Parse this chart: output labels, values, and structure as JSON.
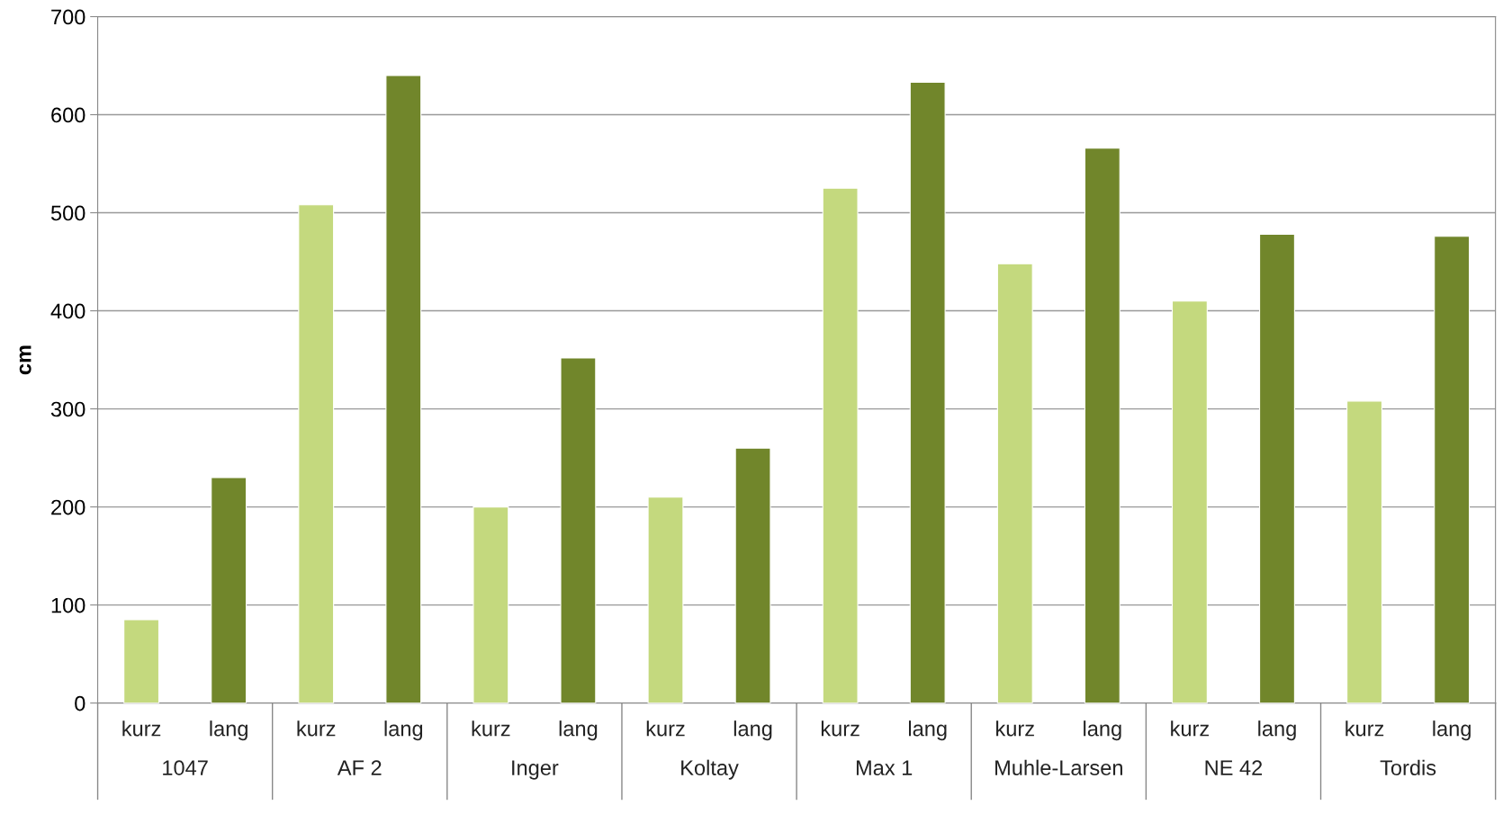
{
  "chart_data": {
    "type": "bar",
    "ylabel": "cm",
    "categories": [
      "1047",
      "AF 2",
      "Inger",
      "Koltay",
      "Max 1",
      "Muhle-Larsen",
      "NE 42",
      "Tordis"
    ],
    "series": [
      {
        "name": "kurz",
        "color": "#c4d97e",
        "values": [
          85,
          508,
          200,
          210,
          525,
          448,
          410,
          308
        ]
      },
      {
        "name": "lang",
        "color": "#71862b",
        "values": [
          230,
          640,
          352,
          260,
          633,
          566,
          478,
          476
        ]
      }
    ],
    "ylim": [
      0,
      700
    ],
    "yticks": [
      0,
      100,
      200,
      300,
      400,
      500,
      600,
      700
    ],
    "grid": "y",
    "legend": false
  }
}
